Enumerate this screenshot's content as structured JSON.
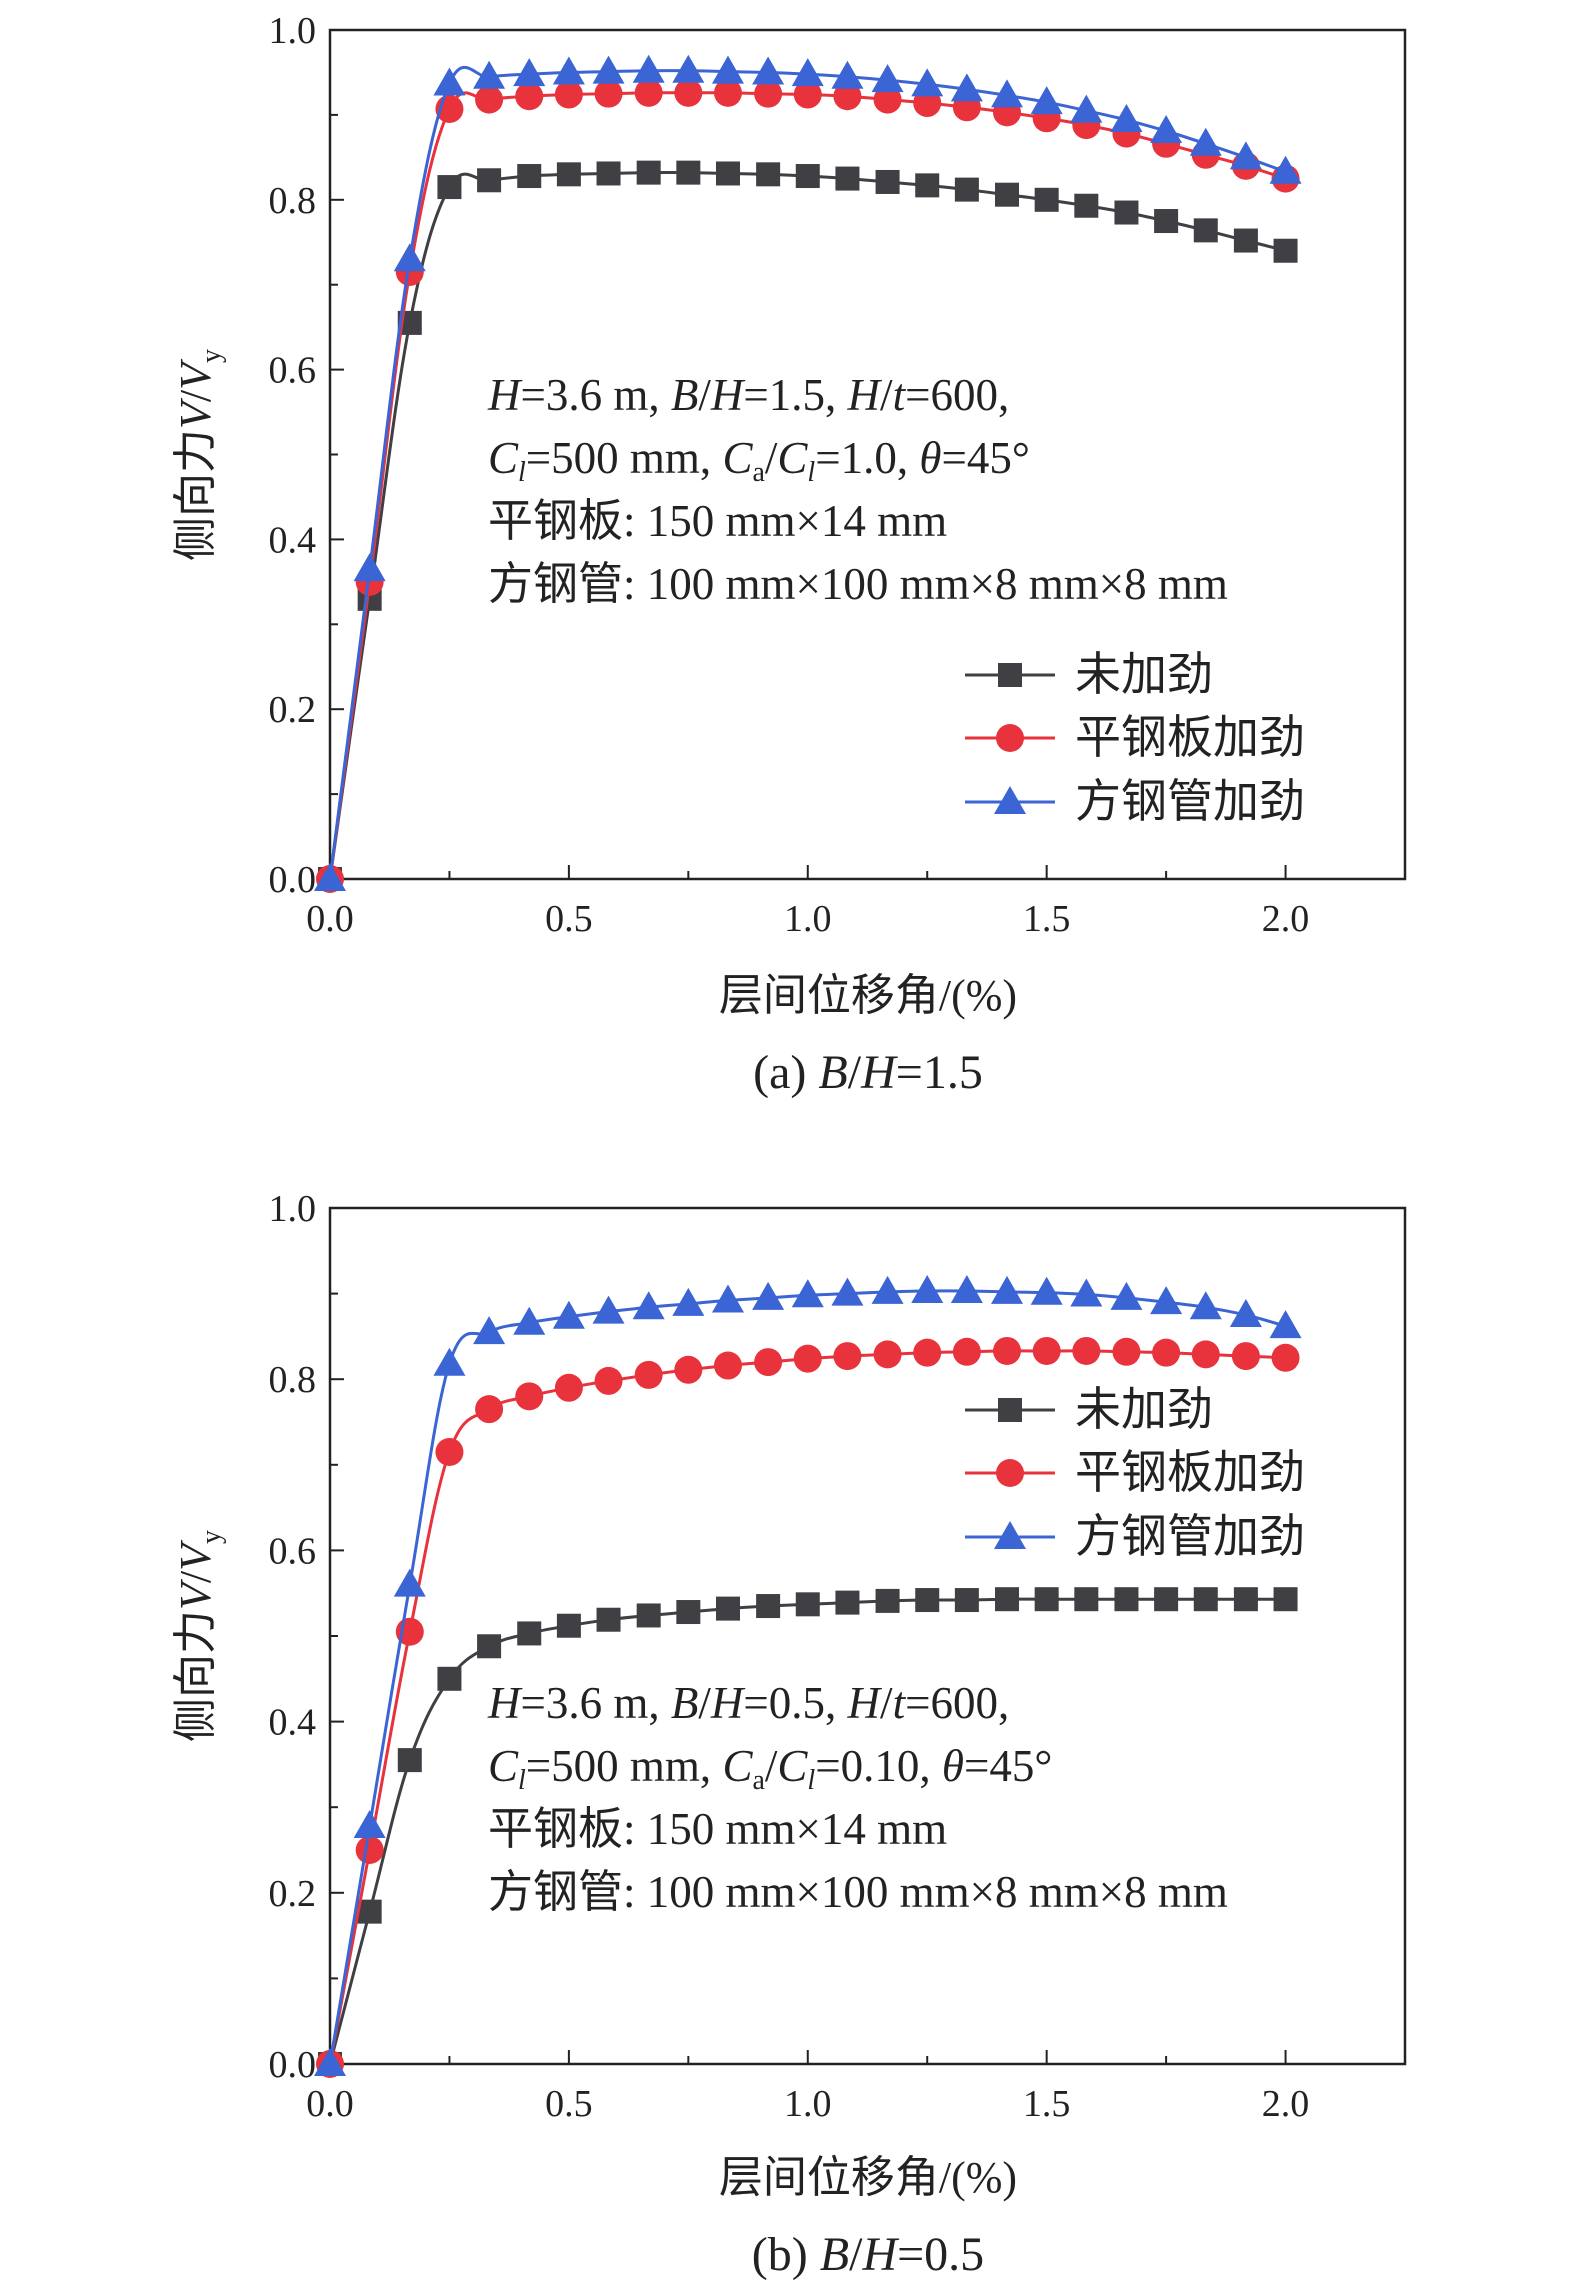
{
  "chart_data": [
    {
      "type": "line",
      "caption": {
        "prefix": "(a) ",
        "var1": "B",
        "slash": "/",
        "var2": "H",
        "value": "=1.5"
      },
      "xlabel": "层间位移角/(%)",
      "ylabel": {
        "text": "侧向力",
        "var": "V",
        "slash": "/",
        "var2": "V",
        "sub": "y"
      },
      "xlim": [
        0,
        2.25
      ],
      "ylim": [
        0,
        1.0
      ],
      "xticks": [
        "0.0",
        "0.5",
        "1.0",
        "1.5",
        "2.0"
      ],
      "yticks": [
        "0.0",
        "0.2",
        "0.4",
        "0.6",
        "0.8",
        "1.0"
      ],
      "annotations": {
        "line1": {
          "H": "H",
          "H_val": "=3.6 m, ",
          "BH_B": "B",
          "BH_sl": "/",
          "BH_H": "H",
          "BH_val": "=1.5, ",
          "Ht_H": "H",
          "Ht_sl": "/",
          "Ht_t": "t",
          "Ht_val": "=600,"
        },
        "line2": {
          "C": "C",
          "l": "l",
          "Cl_val": "=500 mm, ",
          "Ca": "C",
          "a": "a",
          "sl": "/",
          "Cl2": "C",
          "l2": "l",
          "ratio_val": "=1.0, ",
          "theta": "θ",
          "theta_val": "=45°"
        },
        "line3": "平钢板: 150 mm×14 mm",
        "line4": "方钢管: 100 mm×100 mm×8 mm×8 mm"
      },
      "legend_position": "center-right",
      "x": [
        0.0,
        0.083,
        0.167,
        0.25,
        0.333,
        0.417,
        0.5,
        0.583,
        0.667,
        0.75,
        0.833,
        0.917,
        1.0,
        1.083,
        1.167,
        1.25,
        1.333,
        1.417,
        1.5,
        1.583,
        1.667,
        1.75,
        1.833,
        1.917,
        2.0
      ],
      "series": [
        {
          "name": "未加劲",
          "marker": "square",
          "color": "#3f3f44",
          "values": [
            0.0,
            0.33,
            0.655,
            0.815,
            0.823,
            0.828,
            0.83,
            0.831,
            0.832,
            0.832,
            0.831,
            0.83,
            0.828,
            0.825,
            0.821,
            0.817,
            0.812,
            0.806,
            0.8,
            0.793,
            0.785,
            0.775,
            0.764,
            0.752,
            0.74
          ]
        },
        {
          "name": "平钢板加劲",
          "marker": "circle",
          "color": "#e8323c",
          "values": [
            0.0,
            0.35,
            0.715,
            0.907,
            0.918,
            0.922,
            0.924,
            0.925,
            0.926,
            0.926,
            0.926,
            0.925,
            0.924,
            0.922,
            0.918,
            0.914,
            0.909,
            0.903,
            0.896,
            0.888,
            0.878,
            0.866,
            0.853,
            0.84,
            0.825
          ]
        },
        {
          "name": "方钢管加劲",
          "marker": "triangle",
          "color": "#3b64d4",
          "values": [
            0.0,
            0.365,
            0.73,
            0.937,
            0.945,
            0.948,
            0.95,
            0.951,
            0.952,
            0.952,
            0.951,
            0.95,
            0.948,
            0.945,
            0.941,
            0.936,
            0.93,
            0.923,
            0.915,
            0.905,
            0.894,
            0.881,
            0.866,
            0.85,
            0.833
          ]
        }
      ]
    },
    {
      "type": "line",
      "caption": {
        "prefix": "(b) ",
        "var1": "B",
        "slash": "/",
        "var2": "H",
        "value": "=0.5"
      },
      "xlabel": "层间位移角/(%)",
      "ylabel": {
        "text": "侧向力",
        "var": "V",
        "slash": "/",
        "var2": "V",
        "sub": "y"
      },
      "xlim": [
        0,
        2.25
      ],
      "ylim": [
        0,
        1.0
      ],
      "xticks": [
        "0.0",
        "0.5",
        "1.0",
        "1.5",
        "2.0"
      ],
      "yticks": [
        "0.0",
        "0.2",
        "0.4",
        "0.6",
        "0.8",
        "1.0"
      ],
      "annotations": {
        "line1": {
          "H": "H",
          "H_val": "=3.6 m, ",
          "BH_B": "B",
          "BH_sl": "/",
          "BH_H": "H",
          "BH_val": "=0.5, ",
          "Ht_H": "H",
          "Ht_sl": "/",
          "Ht_t": "t",
          "Ht_val": "=600,"
        },
        "line2": {
          "C": "C",
          "l": "l",
          "Cl_val": "=500 mm, ",
          "Ca": "C",
          "a": "a",
          "sl": "/",
          "Cl2": "C",
          "l2": "l",
          "ratio_val": "=0.10, ",
          "theta": "θ",
          "theta_val": "=45°"
        },
        "line3": "平钢板: 150 mm×14 mm",
        "line4": "方钢管: 100 mm×100 mm×8 mm×8 mm"
      },
      "legend_position": "upper-right",
      "x": [
        0.0,
        0.083,
        0.167,
        0.25,
        0.333,
        0.417,
        0.5,
        0.583,
        0.667,
        0.75,
        0.833,
        0.917,
        1.0,
        1.083,
        1.167,
        1.25,
        1.333,
        1.417,
        1.5,
        1.583,
        1.667,
        1.75,
        1.833,
        1.917,
        2.0
      ],
      "series": [
        {
          "name": "未加劲",
          "marker": "square",
          "color": "#3f3f44",
          "values": [
            0.0,
            0.178,
            0.355,
            0.45,
            0.488,
            0.503,
            0.512,
            0.519,
            0.524,
            0.528,
            0.532,
            0.535,
            0.537,
            0.539,
            0.541,
            0.542,
            0.542,
            0.543,
            0.543,
            0.543,
            0.543,
            0.543,
            0.543,
            0.543,
            0.543
          ]
        },
        {
          "name": "平钢板加劲",
          "marker": "circle",
          "color": "#e8323c",
          "values": [
            0.0,
            0.25,
            0.505,
            0.715,
            0.765,
            0.78,
            0.79,
            0.798,
            0.805,
            0.811,
            0.816,
            0.82,
            0.824,
            0.827,
            0.829,
            0.831,
            0.832,
            0.833,
            0.833,
            0.833,
            0.832,
            0.831,
            0.829,
            0.827,
            0.825
          ]
        },
        {
          "name": "方钢管加劲",
          "marker": "triangle",
          "color": "#3b64d4",
          "values": [
            0.0,
            0.278,
            0.56,
            0.818,
            0.855,
            0.866,
            0.873,
            0.879,
            0.884,
            0.888,
            0.892,
            0.895,
            0.898,
            0.9,
            0.902,
            0.903,
            0.903,
            0.902,
            0.901,
            0.899,
            0.895,
            0.89,
            0.884,
            0.875,
            0.862
          ]
        }
      ]
    }
  ]
}
